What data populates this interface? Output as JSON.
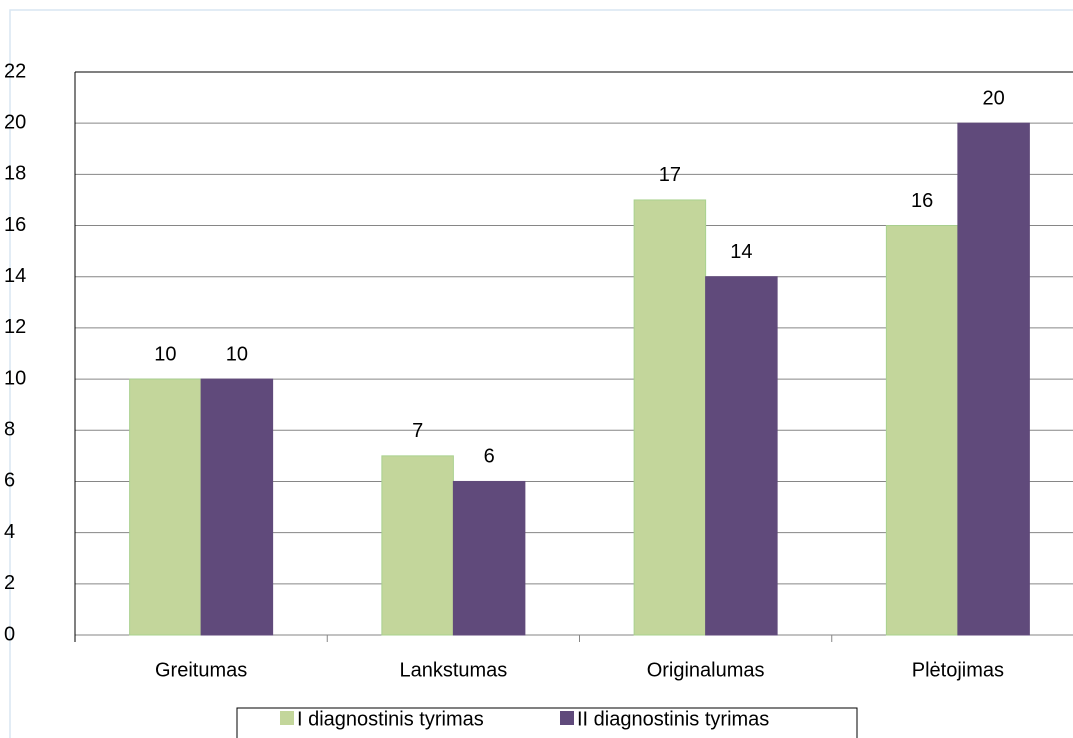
{
  "chart_data": {
    "type": "bar",
    "categories": [
      "Greitumas",
      "Lankstumas",
      "Originalumas",
      "Plėtojimas"
    ],
    "series": [
      {
        "name": "I diagnostinis tyrimas",
        "color": "#c3d69b",
        "values": [
          10,
          7,
          17,
          16
        ]
      },
      {
        "name": "II diagnostinis tyrimas",
        "color": "#604a7b",
        "values": [
          10,
          6,
          14,
          20
        ]
      }
    ],
    "ylim": [
      0,
      22
    ],
    "yticks": [
      0,
      2,
      4,
      6,
      8,
      10,
      12,
      14,
      16,
      18,
      20,
      22
    ],
    "grid": true,
    "data_labels": true,
    "legend": "bottom"
  }
}
